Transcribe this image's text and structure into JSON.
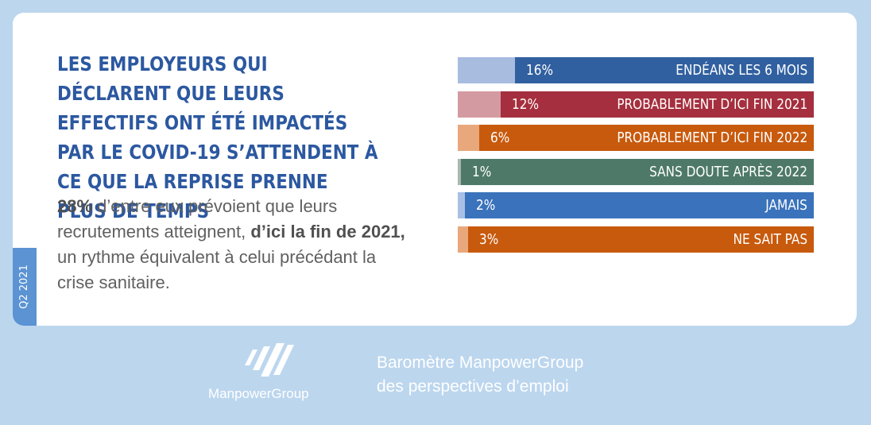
{
  "headline": "LES EMPLOYEURS QUI DÉCLARENT QUE LEURS EFFECTIFS ONT ÉTÉ IMPACTÉS PAR LE COVID-19 S’ATTENDENT À CE QUE LA REPRISE PRENNE PLUS DE TEMPS",
  "body": {
    "pct": "28%",
    "text1": " d’entre eux prévoient que leurs recrutements atteignent, ",
    "bold": "d’ici la fin de 2021,",
    "text2": " un rythme équivalent à celui précédant la crise sanitaire."
  },
  "side_tab": "Q2 2021",
  "chart_data": {
    "type": "bar",
    "orientation": "horizontal",
    "categories": [
      "ENDÉANS LES 6 MOIS",
      "PROBABLEMENT D’ICI FIN 2021",
      "PROBABLEMENT D’ICI FIN 2022",
      "SANS DOUTE APRÈS 2022",
      "JAMAIS",
      "NE SAIT PAS"
    ],
    "values": [
      16,
      12,
      6,
      1,
      2,
      3
    ],
    "value_labels": [
      "16%",
      "12%",
      "6%",
      "1%",
      "2%",
      "3%"
    ],
    "xlim": [
      0,
      100
    ],
    "colors": [
      "#3160a0",
      "#a52f3e",
      "#c85a0d",
      "#4e7969",
      "#3a72bb",
      "#c85a0d"
    ],
    "light_colors": [
      "#a8bce0",
      "#d49aa1",
      "#e8a87c",
      "#a9b8b0",
      "#a7c0e4",
      "#e8a87c"
    ]
  },
  "footer": {
    "brand": "ManpowerGroup",
    "tagline_line1": "Baromètre ManpowerGroup",
    "tagline_line2": "des perspectives d’emploi"
  }
}
